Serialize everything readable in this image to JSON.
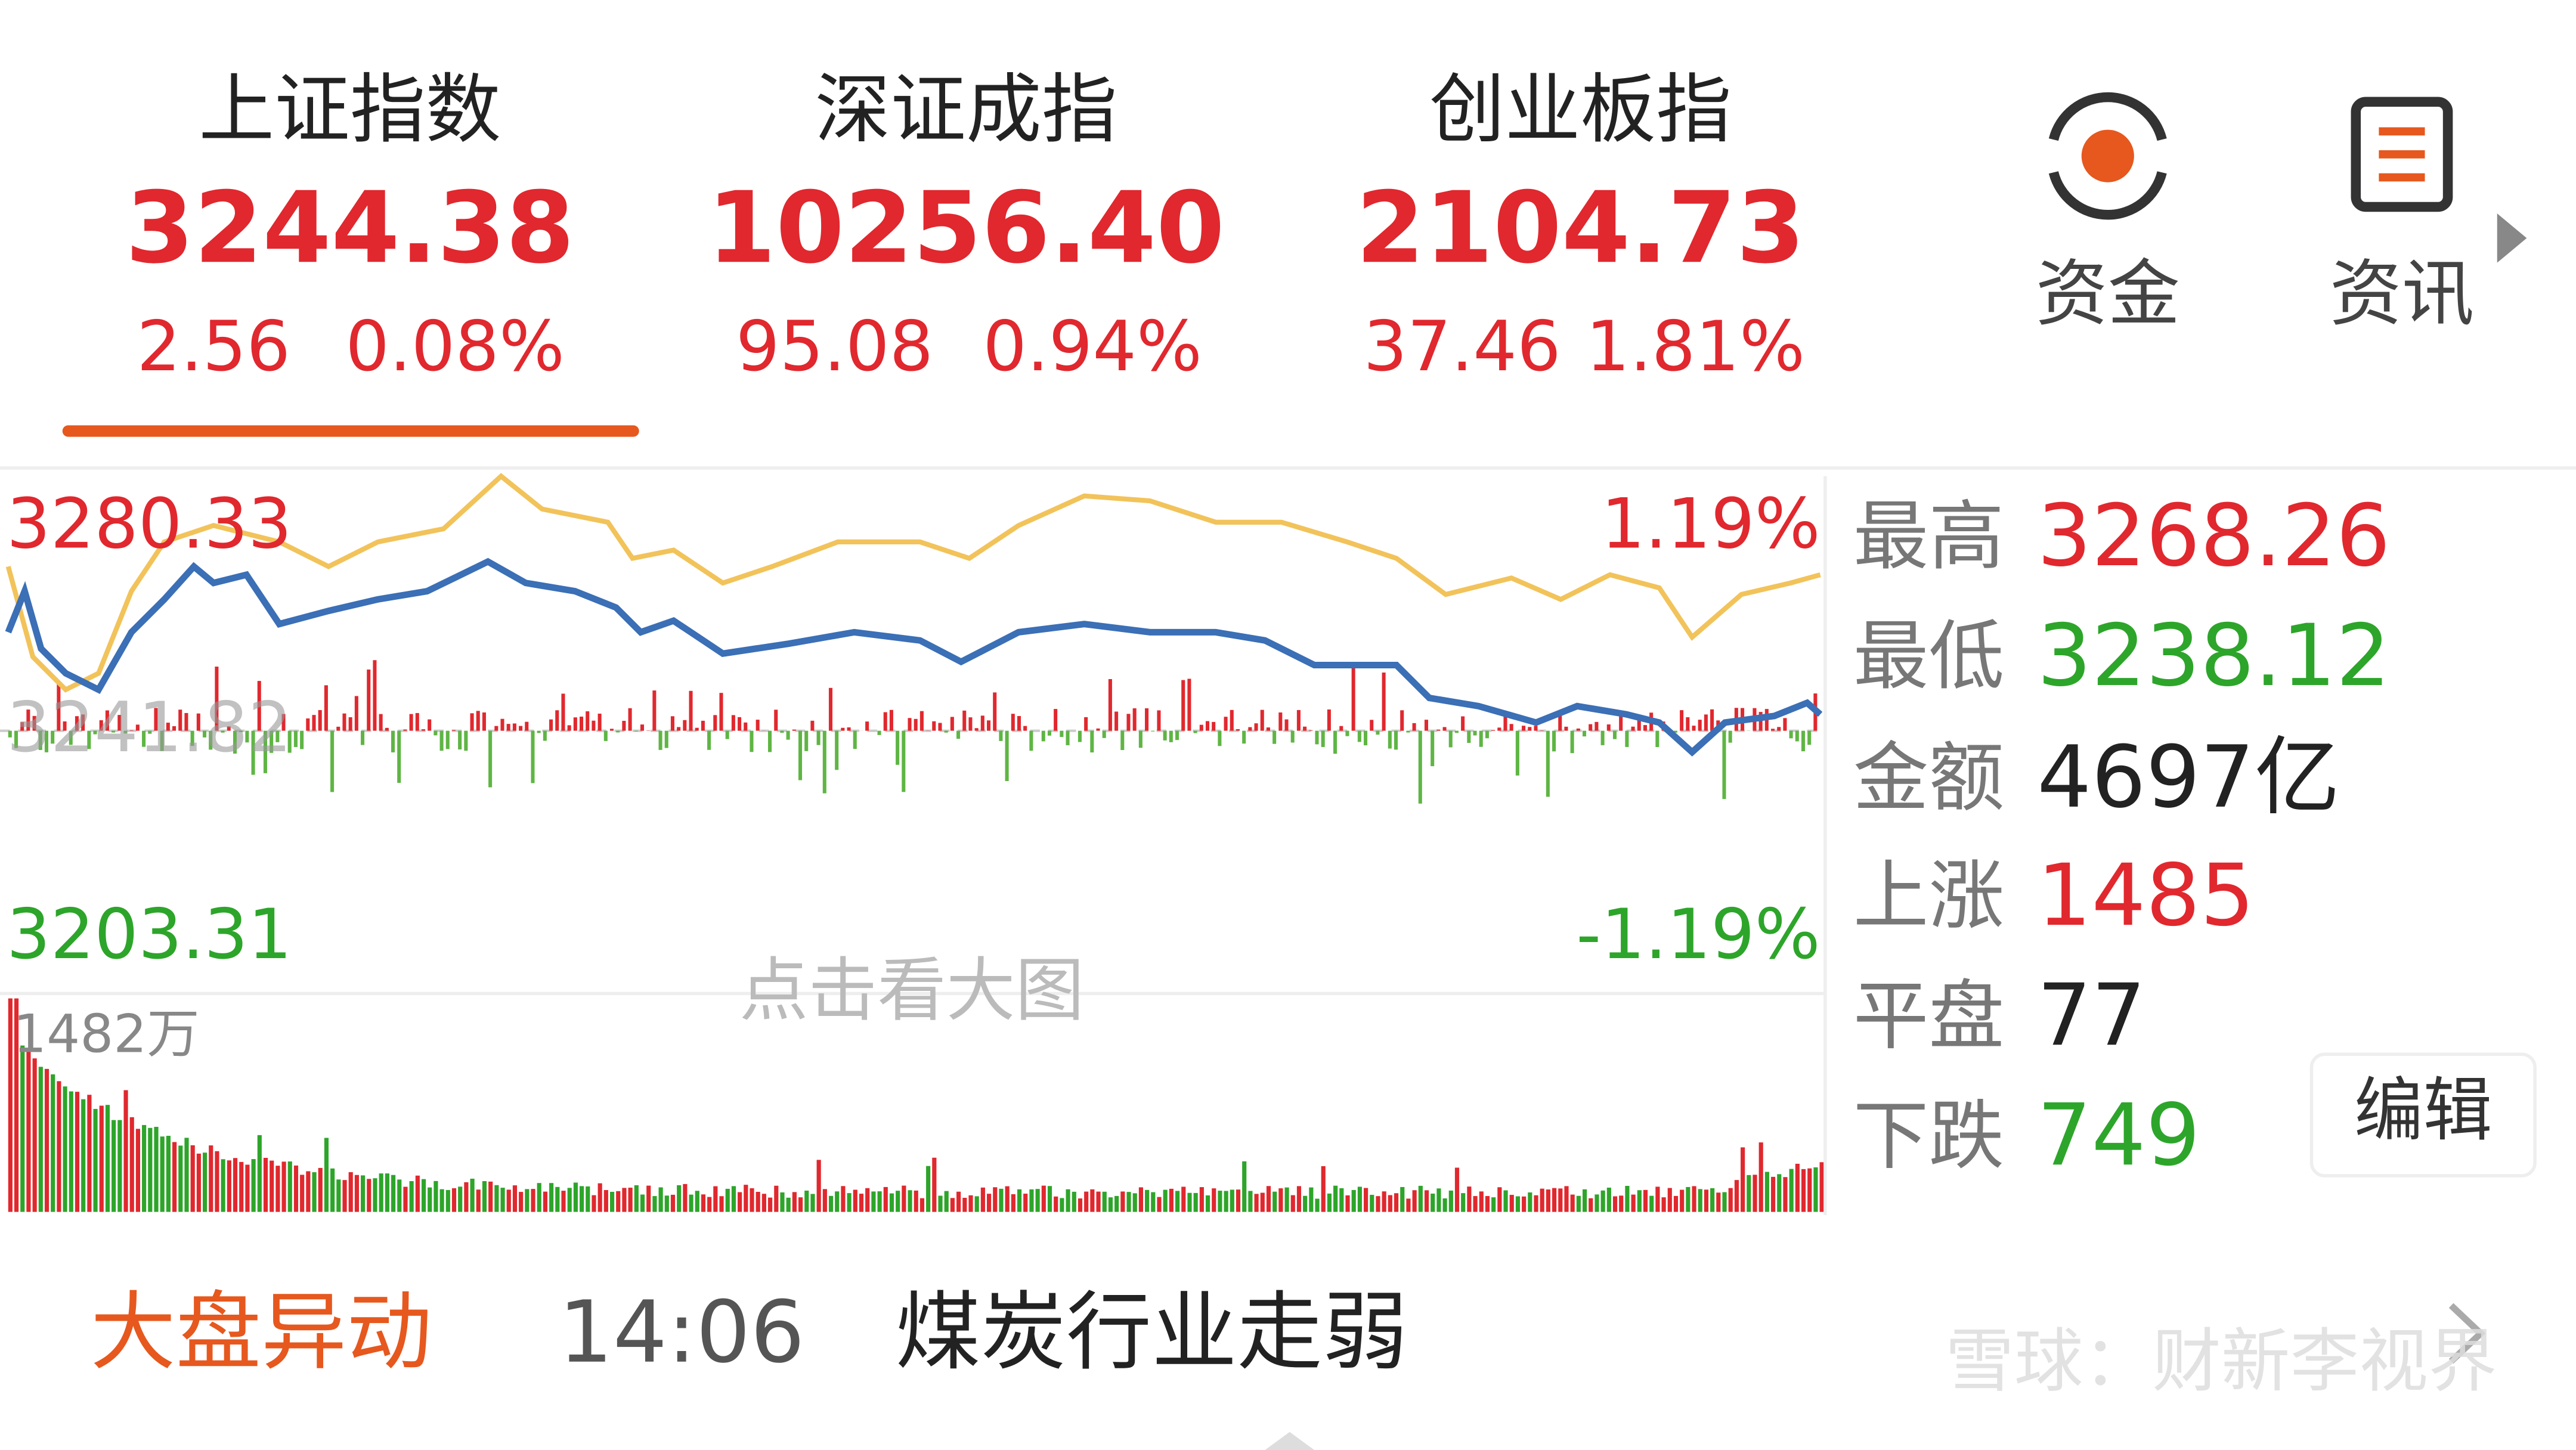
{
  "indices": [
    {
      "name": "上证指数",
      "value": "3244.38",
      "change": "2.56",
      "pct": "0.08%"
    },
    {
      "name": "深证成指",
      "value": "10256.40",
      "change": "95.08",
      "pct": "0.94%"
    },
    {
      "name": "创业板指",
      "value": "2104.73",
      "change": "37.46",
      "pct": "1.81%"
    }
  ],
  "tabs": [
    "资金",
    "资讯"
  ],
  "chart": {
    "high_price": "3280.33",
    "high_pct": "1.19%",
    "mid_price": "3241.82",
    "low_price": "3203.31",
    "low_pct": "-1.19%",
    "hint": "点击看大图",
    "volume_max": "1482万"
  },
  "stats": [
    {
      "label": "最高",
      "value": "3268.26"
    },
    {
      "label": "最低",
      "value": "3238.12"
    },
    {
      "label": "金额",
      "value": "4697亿"
    },
    {
      "label": "上涨",
      "value": "1485"
    },
    {
      "label": "平盘",
      "value": "77"
    },
    {
      "label": "下跌",
      "value": "749"
    }
  ],
  "edit_button": "编辑",
  "news": {
    "tag": "大盘异动",
    "time": "14:06",
    "headline": "煤炭行业走弱"
  },
  "watermark": "雪球：财新李视界"
}
